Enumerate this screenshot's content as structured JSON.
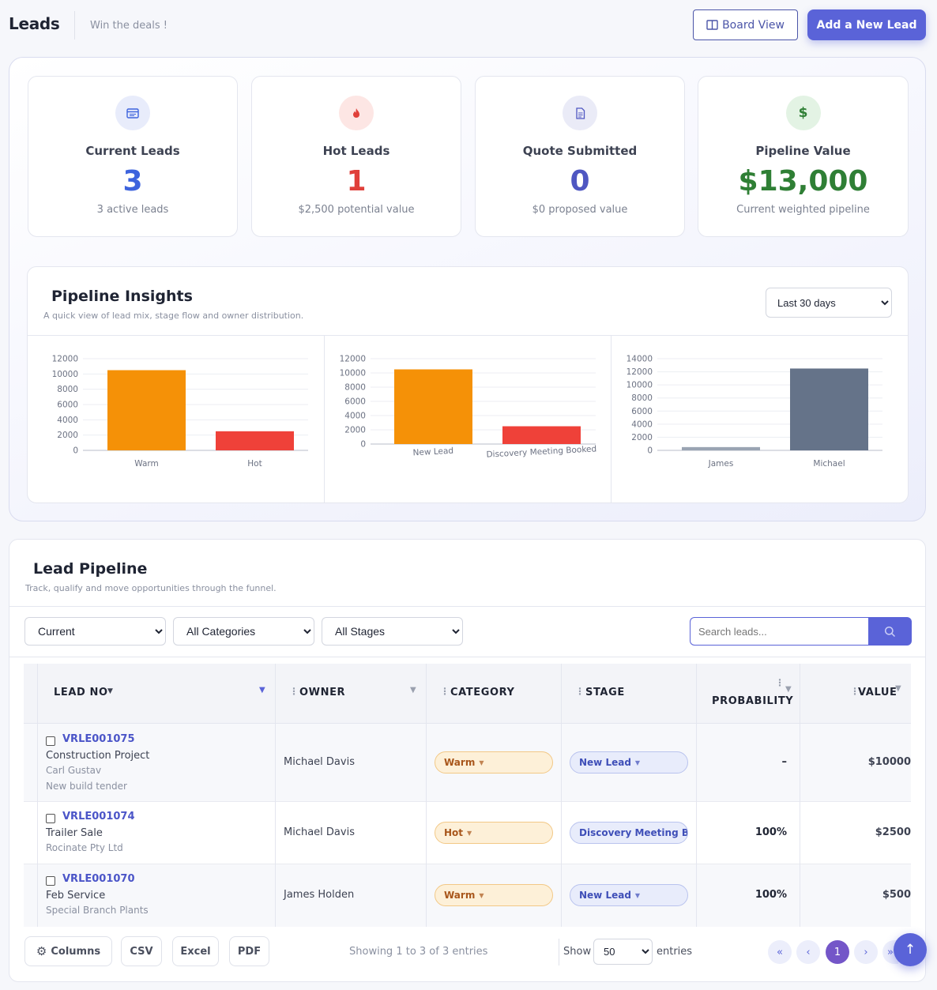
{
  "header": {
    "title": "Leads",
    "subtitle": "Win the deals !",
    "board_view_label": "Board View",
    "add_lead_label": "Add a New Lead"
  },
  "stats": [
    {
      "label": "Current Leads",
      "value": "3",
      "caption": "3 active leads",
      "icon": "calendar-card-icon",
      "color": "#3d63dd"
    },
    {
      "label": "Hot Leads",
      "value": "1",
      "caption": "$2,500 potential value",
      "icon": "fire-icon",
      "color": "#e0403a"
    },
    {
      "label": "Quote Submitted",
      "value": "0",
      "caption": "$0 proposed value",
      "icon": "document-icon",
      "color": "#4f57c2"
    },
    {
      "label": "Pipeline Value",
      "value": "$13,000",
      "caption": "Current weighted pipeline",
      "icon": "dollar-icon",
      "color": "#2f7f35"
    }
  ],
  "insights": {
    "title": "Pipeline Insights",
    "subtitle": "A quick view of lead mix, stage flow and owner distribution.",
    "range": {
      "selected": "Last 30 days",
      "options": [
        "Last 30 days"
      ]
    }
  },
  "chart_data": [
    {
      "type": "bar",
      "categories": [
        "Warm",
        "Hot"
      ],
      "values": [
        10500,
        2500
      ],
      "ylim": [
        0,
        12000
      ],
      "yticks": [
        0,
        2000,
        4000,
        6000,
        8000,
        10000,
        12000
      ],
      "colors": [
        "#f59107",
        "#ef4139"
      ],
      "grid": true
    },
    {
      "type": "bar",
      "categories": [
        "New Lead",
        "Discovery Meeting Booked"
      ],
      "values": [
        10500,
        2500
      ],
      "ylim": [
        0,
        12000
      ],
      "yticks": [
        0,
        2000,
        4000,
        6000,
        8000,
        10000,
        12000
      ],
      "colors": [
        "#f59107",
        "#ef4139"
      ],
      "grid": true
    },
    {
      "type": "bar",
      "categories": [
        "James",
        "Michael"
      ],
      "values": [
        500,
        12500
      ],
      "ylim": [
        0,
        14000
      ],
      "yticks": [
        0,
        2000,
        4000,
        6000,
        8000,
        10000,
        12000,
        14000
      ],
      "colors": [
        "#9aa4b3",
        "#657389"
      ],
      "grid": true
    }
  ],
  "pipeline": {
    "title": "Lead Pipeline",
    "subtitle": "Track, qualify and move opportunities through the funnel.",
    "filters": {
      "status": {
        "selected": "Current"
      },
      "category": {
        "selected": "All Categories"
      },
      "stage": {
        "selected": "All Stages"
      }
    },
    "search_placeholder": "Search leads...",
    "columns": [
      "LEAD NO",
      "OWNER",
      "CATEGORY",
      "STAGE",
      "PROBABILITY",
      "VALUE"
    ],
    "rows": [
      {
        "lead_no": "VRLE001075",
        "project": "Construction Project",
        "contact": "Carl Gustav",
        "note": "New build tender",
        "owner": "Michael Davis",
        "category": "Warm",
        "stage": "New Lead",
        "probability": "–",
        "value": "$10000"
      },
      {
        "lead_no": "VRLE001074",
        "project": "Trailer Sale",
        "contact": "Rocinate Pty Ltd",
        "note": "",
        "owner": "Michael Davis",
        "category": "Hot",
        "stage": "Discovery Meeting Boo",
        "probability": "100%",
        "value": "$2500"
      },
      {
        "lead_no": "VRLE001070",
        "project": "Feb Service",
        "contact": "Special Branch Plants",
        "note": "",
        "owner": "James Holden",
        "category": "Warm",
        "stage": "New Lead",
        "probability": "100%",
        "value": "$500"
      }
    ],
    "footer": {
      "columns_label": "Columns",
      "csv_label": "CSV",
      "excel_label": "Excel",
      "pdf_label": "PDF",
      "info": "Showing 1 to 3 of 3 entries",
      "show_label": "Show",
      "page_size": "50",
      "entries_label": "entries",
      "pages": {
        "first": "«",
        "prev": "‹",
        "current": "1",
        "next": "›",
        "last": "»"
      }
    }
  },
  "scroll_top_label": "↑"
}
